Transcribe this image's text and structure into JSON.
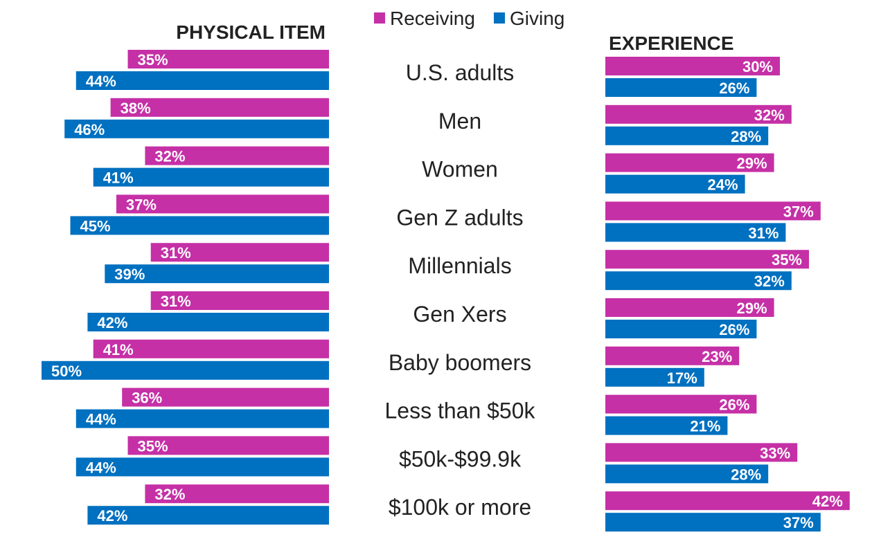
{
  "legend": [
    {
      "label": "Receiving",
      "color": "#c530a6"
    },
    {
      "label": "Giving",
      "color": "#0070c0"
    }
  ],
  "chart_data": [
    {
      "type": "bar",
      "orientation": "horizontal",
      "title": "PHYSICAL ITEM",
      "categories": [
        "U.S. adults",
        "Men",
        "Women",
        "Gen Z adults",
        "Millennials",
        "Gen Xers",
        "Baby boomers",
        "Less than $50k",
        "$50k-$99.9k",
        "$100k or more"
      ],
      "series": [
        {
          "name": "Receiving",
          "values": [
            35,
            38,
            32,
            37,
            31,
            31,
            41,
            36,
            35,
            32
          ]
        },
        {
          "name": "Giving",
          "values": [
            44,
            46,
            41,
            45,
            39,
            42,
            50,
            44,
            44,
            42
          ]
        }
      ],
      "value_format": "{v}%"
    },
    {
      "type": "bar",
      "orientation": "horizontal",
      "title": "EXPERIENCE",
      "categories": [
        "U.S. adults",
        "Men",
        "Women",
        "Gen Z adults",
        "Millennials",
        "Gen Xers",
        "Baby boomers",
        "Less than $50k",
        "$50k-$99.9k",
        "$100k or more"
      ],
      "series": [
        {
          "name": "Receiving",
          "values": [
            30,
            32,
            29,
            37,
            35,
            29,
            23,
            26,
            33,
            42
          ]
        },
        {
          "name": "Giving",
          "values": [
            26,
            28,
            24,
            31,
            32,
            26,
            17,
            21,
            28,
            37
          ]
        }
      ],
      "value_format": "{v}%"
    }
  ]
}
